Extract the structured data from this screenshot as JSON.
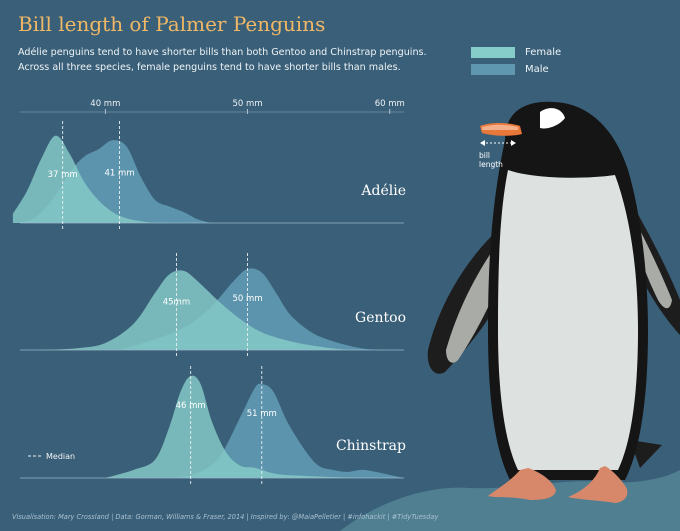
{
  "title": "Bill length of Palmer Penguins",
  "subtitle": "Adélie penguins tend to have shorter bills than both Gentoo and Chinstrap penguins. Across all three species, female penguins tend to have shorter bills than males.",
  "footer": "Visualisation: Mary Crossland | Data: Gorman, Williams & Fraser, 2014 | Inspired by: @MaiaPelletier | #infohackit | #TidyTuesday",
  "annotation": {
    "bill_label": "bill length"
  },
  "colors": {
    "background": "#3a5f78",
    "female": "#86ccc8",
    "male": "#5f97b0",
    "title": "#f0b866"
  },
  "chart_data": {
    "type": "area",
    "x_ticks": [
      {
        "value": 40,
        "label": "40 mm"
      },
      {
        "value": 50,
        "label": "50 mm"
      },
      {
        "value": 60,
        "label": "60 mm"
      }
    ],
    "xlim": [
      34,
      61
    ],
    "grid": false,
    "legend": {
      "position": "top-right",
      "entries": [
        {
          "label": "Female",
          "color": "#86ccc8"
        },
        {
          "label": "Male",
          "color": "#5f97b0"
        }
      ]
    },
    "median_legend": "Median",
    "panels": [
      {
        "species": "Adélie",
        "series": [
          {
            "name": "Female",
            "median": 37,
            "median_label": "37 mm",
            "x": [
              33.5,
              34.5,
              35.5,
              36.5,
              37.5,
              38.5,
              39.5,
              40.5,
              41.5,
              42.5,
              43.5,
              44.5,
              45.5
            ],
            "density": [
              0.1,
              0.35,
              0.7,
              0.95,
              0.75,
              0.45,
              0.25,
              0.12,
              0.05,
              0.02,
              0.0,
              0.0,
              0.0
            ]
          },
          {
            "name": "Male",
            "median": 41,
            "median_label": "41 mm",
            "x": [
              33.5,
              35.0,
              36.5,
              37.5,
              38.5,
              39.5,
              40.5,
              41.5,
              42.5,
              43.5,
              44.5,
              45.5,
              46.5,
              47.5
            ],
            "density": [
              0.0,
              0.05,
              0.3,
              0.55,
              0.72,
              0.8,
              0.9,
              0.83,
              0.5,
              0.25,
              0.18,
              0.12,
              0.04,
              0.0
            ]
          }
        ]
      },
      {
        "species": "Gentoo",
        "series": [
          {
            "name": "Female",
            "median": 45,
            "median_label": "45mm",
            "x": [
              35.5,
              38,
              40,
              42,
              43.5,
              44.5,
              45.5,
              46.5,
              48,
              49.5,
              51,
              53,
              55,
              57
            ],
            "density": [
              0.0,
              0.02,
              0.08,
              0.3,
              0.65,
              0.86,
              0.9,
              0.78,
              0.55,
              0.35,
              0.2,
              0.1,
              0.04,
              0.0
            ]
          },
          {
            "name": "Male",
            "median": 50,
            "median_label": "50 mm",
            "x": [
              41,
              44,
              46,
              47.5,
              49,
              50,
              51,
              52,
              53,
              54.5,
              56,
              58,
              59.5
            ],
            "density": [
              0.0,
              0.15,
              0.3,
              0.5,
              0.78,
              0.92,
              0.88,
              0.65,
              0.4,
              0.2,
              0.1,
              0.02,
              0.0
            ]
          }
        ]
      },
      {
        "species": "Chinstrap",
        "series": [
          {
            "name": "Female",
            "median": 46,
            "median_label": "46 mm",
            "x": [
              40,
              42,
              43.5,
              44.5,
              45.3,
              46,
              46.7,
              47.5,
              48.5,
              49.5,
              50.5,
              52,
              54,
              58
            ],
            "density": [
              0.0,
              0.08,
              0.18,
              0.5,
              0.85,
              1.0,
              0.92,
              0.55,
              0.25,
              0.12,
              0.1,
              0.04,
              0.02,
              0.0
            ]
          },
          {
            "name": "Male",
            "median": 51,
            "median_label": "51 mm",
            "x": [
              45,
              46.5,
              48,
              49.5,
              50.5,
              51,
              51.8,
              52.8,
              54,
              55,
              56,
              57,
              58,
              59,
              61
            ],
            "density": [
              0.0,
              0.05,
              0.2,
              0.6,
              0.88,
              0.92,
              0.85,
              0.55,
              0.28,
              0.12,
              0.08,
              0.06,
              0.08,
              0.06,
              0.0
            ]
          }
        ]
      }
    ]
  }
}
